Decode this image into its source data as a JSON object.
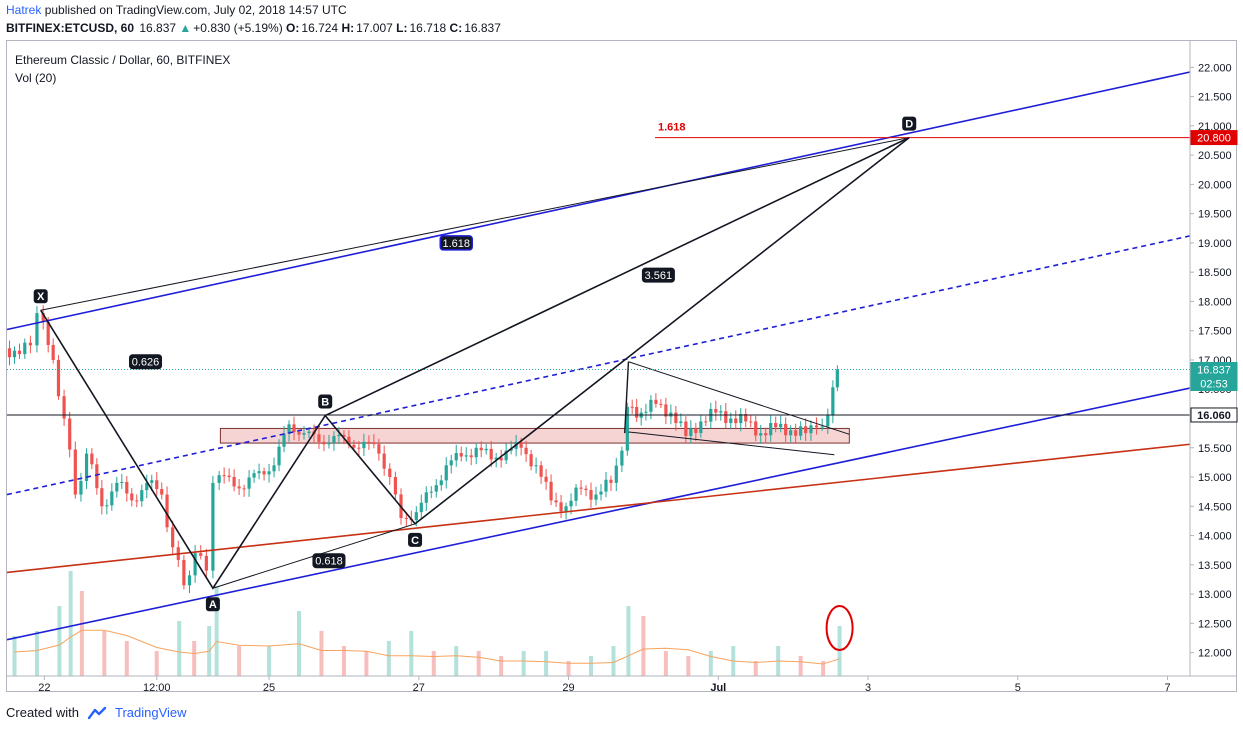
{
  "header": {
    "author": "Hatrek",
    "published": "published on TradingView.com, July 02, 2018 14:57 UTC",
    "symbol": "BITFINEX:ETCUSD, 60",
    "price": "16.837",
    "change_arrow": "▲",
    "change": "+0.830 (+5.19%)",
    "ohlc": {
      "o_label": "O:",
      "o": "16.724",
      "h_label": "H:",
      "h": "17.007",
      "l_label": "L:",
      "l": "16.718",
      "c_label": "C:",
      "c": "16.837"
    }
  },
  "legend": {
    "title": "Ethereum Classic / Dollar, 60, BITFINEX",
    "volume": "Vol (20)"
  },
  "footer": {
    "created_with": "Created with",
    "brand": "TradingView"
  },
  "colors": {
    "up": "#26a69a",
    "down": "#ef5350",
    "trend_blue": "#1e1ed8",
    "trend_red": "#c83014",
    "fib_red": "#e00000",
    "zone_fill": "#f7d4d4",
    "current_price": "#26a69a",
    "level_line": "#131722"
  },
  "chart_data": {
    "type": "candlestick",
    "symbol": "BITFINEX:ETCUSD",
    "timeframe": "60",
    "y_axis": {
      "ticks": [
        "22.000",
        "21.500",
        "21.000",
        "20.500",
        "20.000",
        "19.500",
        "19.000",
        "18.500",
        "18.000",
        "17.500",
        "17.000",
        "16.500",
        "16.000",
        "15.500",
        "15.000",
        "14.500",
        "14.000",
        "13.500",
        "13.000",
        "12.500",
        "12.000"
      ],
      "range": [
        11.6,
        22.45
      ]
    },
    "x_axis": {
      "ticks": [
        "22",
        "12:00",
        "25",
        "27",
        "29",
        "Jul",
        "3",
        "5",
        "7"
      ],
      "range_days": [
        21.5,
        37.3
      ]
    },
    "close_series": [
      {
        "t": 21.5,
        "c": 17.2
      },
      {
        "t": 21.7,
        "c": 17.1
      },
      {
        "t": 21.85,
        "c": 17.25
      },
      {
        "t": 21.95,
        "c": 17.8
      },
      {
        "t": 22.15,
        "c": 17.0
      },
      {
        "t": 22.3,
        "c": 16.0
      },
      {
        "t": 22.45,
        "c": 14.7
      },
      {
        "t": 22.6,
        "c": 15.4
      },
      {
        "t": 22.8,
        "c": 14.5
      },
      {
        "t": 23.0,
        "c": 14.9
      },
      {
        "t": 23.2,
        "c": 14.6
      },
      {
        "t": 23.4,
        "c": 14.9
      },
      {
        "t": 23.6,
        "c": 14.7
      },
      {
        "t": 23.75,
        "c": 13.8
      },
      {
        "t": 23.9,
        "c": 13.15
      },
      {
        "t": 24.05,
        "c": 13.7
      },
      {
        "t": 24.2,
        "c": 13.4
      },
      {
        "t": 24.3,
        "c": 14.9
      },
      {
        "t": 24.5,
        "c": 15.0
      },
      {
        "t": 24.7,
        "c": 14.8
      },
      {
        "t": 24.9,
        "c": 15.1
      },
      {
        "t": 25.1,
        "c": 15.2
      },
      {
        "t": 25.3,
        "c": 15.9
      },
      {
        "t": 25.5,
        "c": 15.75
      },
      {
        "t": 25.7,
        "c": 15.6
      },
      {
        "t": 25.9,
        "c": 15.7
      },
      {
        "t": 26.1,
        "c": 15.55
      },
      {
        "t": 26.3,
        "c": 15.6
      },
      {
        "t": 26.5,
        "c": 15.4
      },
      {
        "t": 26.65,
        "c": 15.0
      },
      {
        "t": 26.8,
        "c": 14.3
      },
      {
        "t": 27.0,
        "c": 14.4
      },
      {
        "t": 27.2,
        "c": 14.75
      },
      {
        "t": 27.4,
        "c": 15.2
      },
      {
        "t": 27.6,
        "c": 15.35
      },
      {
        "t": 27.8,
        "c": 15.5
      },
      {
        "t": 28.0,
        "c": 15.3
      },
      {
        "t": 28.2,
        "c": 15.45
      },
      {
        "t": 28.4,
        "c": 15.5
      },
      {
        "t": 28.6,
        "c": 15.2
      },
      {
        "t": 28.8,
        "c": 14.6
      },
      {
        "t": 29.0,
        "c": 14.5
      },
      {
        "t": 29.2,
        "c": 14.8
      },
      {
        "t": 29.4,
        "c": 14.7
      },
      {
        "t": 29.6,
        "c": 14.9
      },
      {
        "t": 29.75,
        "c": 15.45
      },
      {
        "t": 29.82,
        "c": 16.2
      },
      {
        "t": 30.0,
        "c": 16.1
      },
      {
        "t": 30.2,
        "c": 16.25
      },
      {
        "t": 30.4,
        "c": 16.1
      },
      {
        "t": 30.6,
        "c": 15.7
      },
      {
        "t": 30.8,
        "c": 15.95
      },
      {
        "t": 31.0,
        "c": 16.1
      },
      {
        "t": 31.2,
        "c": 16.0
      },
      {
        "t": 31.4,
        "c": 15.95
      },
      {
        "t": 31.6,
        "c": 15.75
      },
      {
        "t": 31.8,
        "c": 15.85
      },
      {
        "t": 32.0,
        "c": 15.8
      },
      {
        "t": 32.2,
        "c": 15.75
      },
      {
        "t": 32.35,
        "c": 15.85
      },
      {
        "t": 32.5,
        "c": 16.05
      },
      {
        "t": 32.62,
        "c": 16.837
      }
    ],
    "horizontal_levels": [
      {
        "price": 16.06,
        "label": "16.060",
        "style": "solid",
        "color": "#131722"
      },
      {
        "price": 16.837,
        "label": "16.837",
        "sublabel": "02:53",
        "style": "dotted",
        "color": "#26a69a"
      },
      {
        "price": 20.8,
        "label": "20.800",
        "fib_ratio": "1.618",
        "style": "solid",
        "color": "#e00000"
      }
    ],
    "support_zone": {
      "t_start": 24.35,
      "t_end": 32.75,
      "top": 15.83,
      "bottom": 15.58
    },
    "pattern_points": [
      {
        "label": "X",
        "t": 21.95,
        "price": 17.85
      },
      {
        "label": "A",
        "t": 24.25,
        "price": 13.1
      },
      {
        "label": "B",
        "t": 25.75,
        "price": 16.05
      },
      {
        "label": "C",
        "t": 26.95,
        "price": 14.2
      },
      {
        "label": "D",
        "t": 33.55,
        "price": 20.8
      }
    ],
    "ratio_labels": [
      {
        "text": "0.626",
        "t": 23.35,
        "price": 16.97
      },
      {
        "text": "0.618",
        "t": 25.8,
        "price": 13.57
      },
      {
        "text": "3.561",
        "t": 30.2,
        "price": 18.45
      },
      {
        "text": "1.618",
        "t": 27.5,
        "price": 19.0
      }
    ],
    "trendlines": [
      {
        "name": "upper channel",
        "color": "#1e1ed8",
        "style": "solid",
        "p1": [
          21.5,
          17.52
        ],
        "p2": [
          37.3,
          21.92
        ]
      },
      {
        "name": "mid channel",
        "color": "#1e1ed8",
        "style": "dashed",
        "p1": [
          21.5,
          14.7
        ],
        "p2": [
          37.3,
          19.12
        ]
      },
      {
        "name": "lower channel",
        "color": "#1e1ed8",
        "style": "solid",
        "p1": [
          21.5,
          12.22
        ],
        "p2": [
          37.3,
          16.52
        ]
      },
      {
        "name": "red support",
        "color": "#c83014",
        "style": "solid",
        "p1": [
          21.5,
          13.37
        ],
        "p2": [
          37.3,
          15.56
        ]
      },
      {
        "name": "X-D thin",
        "color": "#131722",
        "style": "solid",
        "p1": [
          21.95,
          17.85
        ],
        "p2": [
          33.55,
          20.8
        ]
      },
      {
        "name": "A-C thin",
        "color": "#131722",
        "style": "solid",
        "p1": [
          24.25,
          13.1
        ],
        "p2": [
          26.95,
          14.2
        ]
      },
      {
        "name": "wedge top",
        "color": "#131722",
        "style": "solid",
        "p1": [
          29.8,
          16.97
        ],
        "p2": [
          32.75,
          15.73
        ]
      },
      {
        "name": "wedge bottom",
        "color": "#131722",
        "style": "solid",
        "p1": [
          29.8,
          15.77
        ],
        "p2": [
          32.55,
          15.38
        ]
      }
    ],
    "volume": {
      "label": "Vol (20)",
      "t": [
        21.6,
        21.9,
        22.2,
        22.35,
        22.5,
        22.8,
        23.1,
        23.5,
        23.8,
        24.0,
        24.2,
        24.3,
        24.6,
        25.0,
        25.4,
        25.7,
        26.0,
        26.3,
        26.6,
        26.9,
        27.2,
        27.5,
        27.8,
        28.1,
        28.4,
        28.7,
        29.0,
        29.3,
        29.6,
        29.8,
        30.0,
        30.3,
        30.6,
        30.9,
        31.2,
        31.5,
        31.8,
        32.1,
        32.4,
        32.62
      ],
      "v": [
        0.8,
        0.9,
        1.4,
        2.1,
        1.7,
        0.9,
        0.7,
        0.5,
        1.1,
        0.7,
        1.0,
        1.8,
        0.6,
        0.6,
        1.3,
        0.9,
        0.6,
        0.5,
        0.7,
        0.9,
        0.5,
        0.6,
        0.5,
        0.4,
        0.5,
        0.5,
        0.3,
        0.4,
        0.6,
        1.4,
        1.2,
        0.5,
        0.4,
        0.5,
        0.6,
        0.3,
        0.6,
        0.4,
        0.3,
        1.0
      ]
    },
    "annotation": {
      "type": "ellipse",
      "color": "#e00000",
      "t": 32.62,
      "note": "volume spike"
    }
  }
}
